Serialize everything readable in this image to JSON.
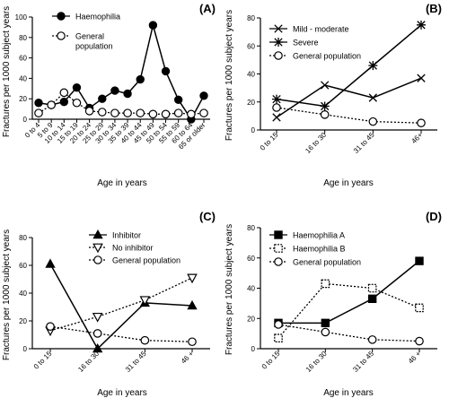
{
  "chart_data": [
    {
      "panel": "(A)",
      "type": "line",
      "xlabel": "Age in years",
      "ylabel": "Fractures per 1000 subject years",
      "ylim": [
        0,
        100
      ],
      "yticks": [
        0,
        20,
        40,
        60,
        80,
        100
      ],
      "categories": [
        "0 to 4",
        "5 to 9",
        "10 to 14",
        "15 to 19",
        "20 to 24",
        "25 to 29",
        "30 to 34",
        "35 to 39",
        "40 to 44",
        "45 to 49",
        "50 to 54",
        "55 to 59",
        "60 to 64",
        "65 or older"
      ],
      "legend_position": "top-left",
      "series": [
        {
          "name": "Haemophilia",
          "marker": "filled-circle",
          "line": "solid",
          "values": [
            16,
            14,
            17,
            31,
            11,
            20,
            28,
            25,
            39,
            92,
            47,
            19,
            0,
            23
          ]
        },
        {
          "name": "General population",
          "marker": "open-circle",
          "line": "dotted",
          "values": [
            6,
            14,
            26,
            16,
            8,
            7,
            6,
            6,
            6,
            5,
            5,
            6,
            5,
            6
          ]
        }
      ]
    },
    {
      "panel": "(B)",
      "type": "line",
      "xlabel": "Age in years",
      "ylabel": "Fractures per 1000 subject years",
      "ylim": [
        0,
        80
      ],
      "yticks": [
        0,
        20,
        40,
        60,
        80
      ],
      "categories": [
        "0 to 15",
        "16 to 30",
        "31 to 45",
        "46+"
      ],
      "legend_position": "top-left",
      "series": [
        {
          "name": "Mild - moderate",
          "marker": "x",
          "line": "solid",
          "values": [
            9,
            32,
            23,
            37
          ]
        },
        {
          "name": "Severe",
          "marker": "asterisk",
          "line": "solid",
          "values": [
            22,
            17,
            46,
            75
          ]
        },
        {
          "name": "General population",
          "marker": "open-circle",
          "line": "dotted",
          "values": [
            16,
            11,
            6,
            5
          ]
        }
      ]
    },
    {
      "panel": "(C)",
      "type": "line",
      "xlabel": "Age in years",
      "ylabel": "Fractures per 1000 subject years",
      "ylim": [
        0,
        80
      ],
      "yticks": [
        0,
        20,
        40,
        60,
        80
      ],
      "categories": [
        "0 to 15",
        "16 to 30",
        "31 to 45",
        "46 +"
      ],
      "legend_position": "top-center",
      "series": [
        {
          "name": "Inhibitor",
          "marker": "filled-triangle-up",
          "line": "solid",
          "values": [
            61,
            0,
            33,
            31
          ]
        },
        {
          "name": "No inhibitor",
          "marker": "open-triangle-down",
          "line": "dotted",
          "values": [
            13,
            23,
            35,
            51
          ]
        },
        {
          "name": "General population",
          "marker": "open-circle",
          "line": "dotted",
          "values": [
            16,
            11,
            6,
            5
          ]
        }
      ]
    },
    {
      "panel": "(D)",
      "type": "line",
      "xlabel": "Age in years",
      "ylabel": "Fractures per 1000 subject years",
      "ylim": [
        0,
        80
      ],
      "yticks": [
        0,
        20,
        40,
        60,
        80
      ],
      "categories": [
        "0 to 15",
        "16 to 30",
        "31 to 45",
        "46 +"
      ],
      "legend_position": "top-left",
      "series": [
        {
          "name": "Haemophilia A",
          "marker": "filled-square",
          "line": "solid",
          "values": [
            17,
            17,
            33,
            58
          ]
        },
        {
          "name": "Haemophilia B",
          "marker": "open-square",
          "line": "dotted",
          "values": [
            7,
            43,
            40,
            27
          ]
        },
        {
          "name": "General population",
          "marker": "open-circle",
          "line": "dotted",
          "values": [
            16,
            11,
            6,
            5
          ]
        }
      ]
    }
  ]
}
